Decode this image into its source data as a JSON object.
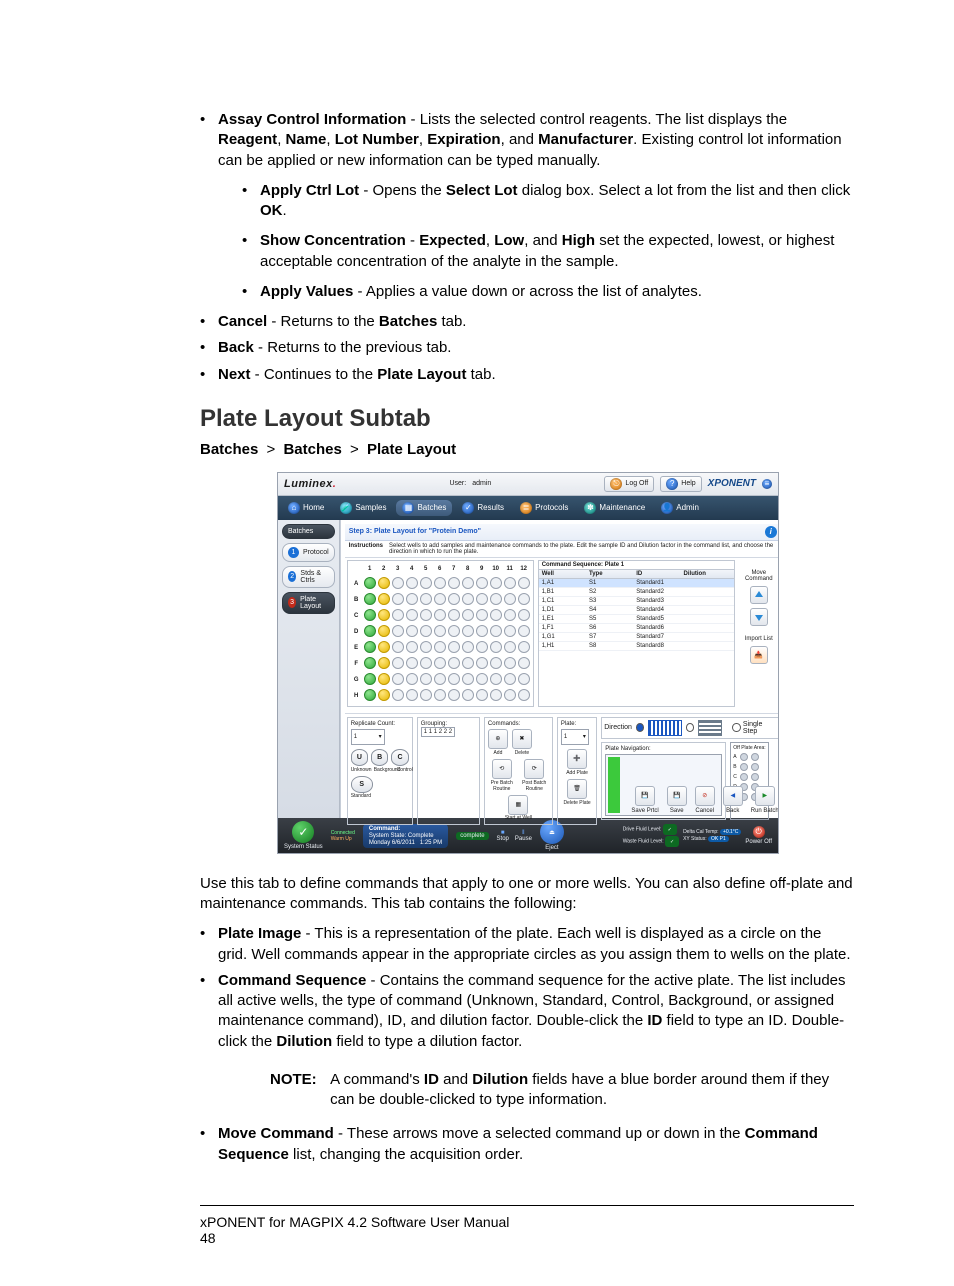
{
  "bullets_top": {
    "assay_control": {
      "title": "Assay Control Information",
      "text1": " - Lists the selected control reagents. The list displays the ",
      "b1": "Reagent",
      "c1": ", ",
      "b2": "Name",
      "c2": ", ",
      "b3": "Lot Number",
      "c3": ", ",
      "b4": "Expiration",
      "c4": ", and ",
      "b5": "Manufacturer",
      "text2": ". Existing control lot information can be applied or new information can be typed manually.",
      "sub": {
        "apply_ctrl": {
          "t": "Apply Ctrl Lot",
          "a": " - Opens the ",
          "b": "Select Lot",
          "c": " dialog box. Select a lot from the list and then click ",
          "d": "OK",
          "e": "."
        },
        "show_conc": {
          "t": "Show Concentration",
          "a": " - ",
          "b": "Expected",
          "c": ", ",
          "d": "Low",
          "e": ", and ",
          "f": "High",
          "g": " set the expected, lowest, or highest acceptable concentration of the analyte in the sample."
        },
        "apply_vals": {
          "t": "Apply Values",
          "a": " - Applies a value down or across the list of analytes."
        }
      }
    },
    "cancel": {
      "t": "Cancel",
      "a": " - Returns to the ",
      "b": "Batches",
      "c": " tab."
    },
    "back": {
      "t": "Back",
      "a": " - Returns to the previous tab."
    },
    "next": {
      "t": "Next",
      "a": " - Continues to the ",
      "b": "Plate Layout",
      "c": " tab."
    }
  },
  "section_heading": "Plate Layout Subtab",
  "breadcrumb": {
    "a": "Batches",
    "b": "Batches",
    "c": "Plate Layout",
    "sep": ">"
  },
  "post_shot": {
    "intro": "Use this tab to define commands that apply to one or more wells. You can also define off-plate and maintenance commands. This tab contains the following:",
    "plate_image": {
      "t": "Plate Image",
      "a": " - This is a representation of the plate. Each well is displayed as a circle on the grid. Well commands appear in the appropriate circles as you assign them to wells on the plate."
    },
    "cmd_seq": {
      "t": "Command Sequence",
      "a": " - Contains the command sequence for the active plate. The list includes all active wells, the type of command (Unknown, Standard, Control, Background, or assigned maintenance command), ID, and dilution factor. Double-click the ",
      "b": "ID",
      "c": " field to type an ID. Double-click the ",
      "d": "Dilution",
      "e": " field to type a dilution factor."
    },
    "note": {
      "label": "NOTE:",
      "a": " A command's ",
      "b": "ID",
      "c": " and ",
      "d": "Dilution",
      "e": " fields have a blue border around them if they can be double-clicked to type information."
    },
    "move_cmd": {
      "t": "Move Command",
      "a": " - These arrows move a selected command up or down in the ",
      "b": "Command Sequence",
      "c": " list, changing the acquisition order."
    }
  },
  "footer": {
    "line1": "xPONENT for MAGPIX 4.2 Software User Manual",
    "page": "48"
  },
  "shot": {
    "brand": "Luminex",
    "user_label": "User:",
    "user_value": "admin",
    "logoff": "Log Off",
    "help": "Help",
    "product": "XPONENT",
    "nav": [
      "Home",
      "Samples",
      "Batches",
      "Results",
      "Protocols",
      "Maintenance",
      "Admin"
    ],
    "nav_active_index": 2,
    "side": {
      "batches": "Batches",
      "protocol": "Protocol",
      "stds": "Stds & Ctrls",
      "plate": "Plate Layout"
    },
    "step_title": "Step 3: Plate Layout for \"Protein Demo\"",
    "instructions_label": "Instructions",
    "instructions_text": "Select wells to add samples and maintenance commands to the plate. Edit the sample ID and Dilution factor in the command list, and choose the direction in which to run the plate.",
    "cols": [
      "1",
      "2",
      "3",
      "4",
      "5",
      "6",
      "7",
      "8",
      "9",
      "10",
      "11",
      "12"
    ],
    "rows": [
      "A",
      "B",
      "C",
      "D",
      "E",
      "F",
      "G",
      "H"
    ],
    "cmd_header": "Command Sequence: Plate 1",
    "cmd_cols": [
      "Well",
      "Type",
      "ID",
      "Dilution"
    ],
    "cmd_rows": [
      [
        "1,A1",
        "S1",
        "Standard1",
        ""
      ],
      [
        "1,B1",
        "S2",
        "Standard2",
        ""
      ],
      [
        "1,C1",
        "S3",
        "Standard3",
        ""
      ],
      [
        "1,D1",
        "S4",
        "Standard4",
        ""
      ],
      [
        "1,E1",
        "S5",
        "Standard5",
        ""
      ],
      [
        "1,F1",
        "S6",
        "Standard6",
        ""
      ],
      [
        "1,G1",
        "S7",
        "Standard7",
        ""
      ],
      [
        "1,H1",
        "S8",
        "Standard8",
        ""
      ]
    ],
    "move_label": "Move Command",
    "import_label": "Import List",
    "replicate_label": "Replicate Count:",
    "replicate_value": "1",
    "grouping_label": "Grouping:",
    "grouping_value": "1 1 1 2 2 2",
    "commands_label": "Commands:",
    "plate_label": "Plate:",
    "plate_value": "1",
    "direction_label": "Direction",
    "single_step": "Single Step",
    "platenav_label": "Plate Navigation:",
    "offplate_label": "Off Plate Area:",
    "type_buttons": {
      "u": "U",
      "b": "B",
      "c": "C",
      "s": "S"
    },
    "type_labels": {
      "u": "Unknown",
      "b": "Background",
      "c": "Control",
      "s": "Standard"
    },
    "cmd_buttons": {
      "add": "Add",
      "del": "Delete",
      "pre": "Pre Batch Routine",
      "post": "Post Batch Routine",
      "start": "Start at Well"
    },
    "plate_buttons": {
      "add": "Add Plate",
      "del": "Delete Plate"
    },
    "actions": {
      "saveprv": "Save Prtcl",
      "save": "Save",
      "cancel": "Cancel",
      "back": "Back",
      "run": "Run Batch"
    },
    "status": {
      "system": "System Status",
      "connected": "Connected",
      "warmup": "Warm Up",
      "command": "Command:",
      "complete": "complete",
      "sysstate": "System State: Complete",
      "date": "Monday 6/6/2011",
      "time": "1:25 PM",
      "stop": "Stop",
      "pause": "Pause",
      "eject": "Eject",
      "dfl": "Drive Fluid Level:",
      "wfl": "Waste Fluid Level:",
      "dct": "Delta Cal Temp:",
      "dctv": "+0.1°C",
      "xys": "XY Status:",
      "xysv": "OK P1",
      "power": "Power Off"
    }
  }
}
